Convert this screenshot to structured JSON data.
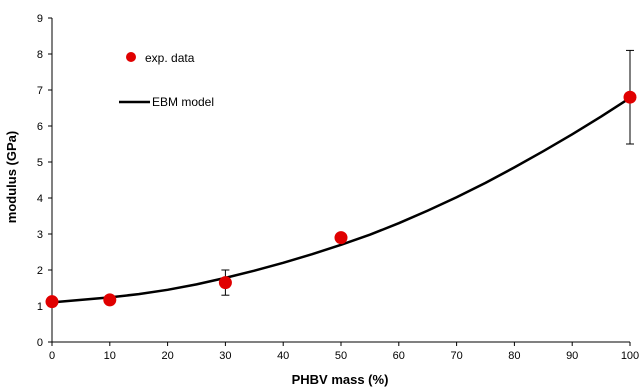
{
  "chart_data": {
    "type": "scatter",
    "title": "",
    "xlabel": "PHBV mass (%)",
    "ylabel": "modulus (GPa)",
    "xlim": [
      0,
      100
    ],
    "ylim": [
      0,
      9
    ],
    "x_ticks": [
      "0",
      "10",
      "20",
      "30",
      "40",
      "50",
      "60",
      "70",
      "80",
      "90",
      "100"
    ],
    "y_ticks": [
      "0",
      "1",
      "2",
      "3",
      "4",
      "5",
      "6",
      "7",
      "8",
      "9"
    ],
    "grid": false,
    "legend_position": "top-left",
    "series": [
      {
        "name": "exp. data",
        "kind": "points",
        "color": "#e00000",
        "x": [
          0,
          10,
          30,
          50,
          100
        ],
        "y": [
          1.12,
          1.17,
          1.65,
          2.9,
          6.8
        ],
        "error": [
          0,
          0,
          0.35,
          0,
          1.3
        ]
      },
      {
        "name": "EBM model",
        "kind": "line",
        "color": "#000000",
        "x": [
          0,
          5,
          10,
          15,
          20,
          25,
          30,
          35,
          40,
          45,
          50,
          55,
          60,
          65,
          70,
          75,
          80,
          85,
          90,
          95,
          100
        ],
        "y": [
          1.1,
          1.17,
          1.24,
          1.33,
          1.45,
          1.6,
          1.78,
          1.98,
          2.2,
          2.44,
          2.7,
          2.98,
          3.3,
          3.65,
          4.02,
          4.42,
          4.85,
          5.3,
          5.77,
          6.26,
          6.78
        ]
      }
    ]
  }
}
